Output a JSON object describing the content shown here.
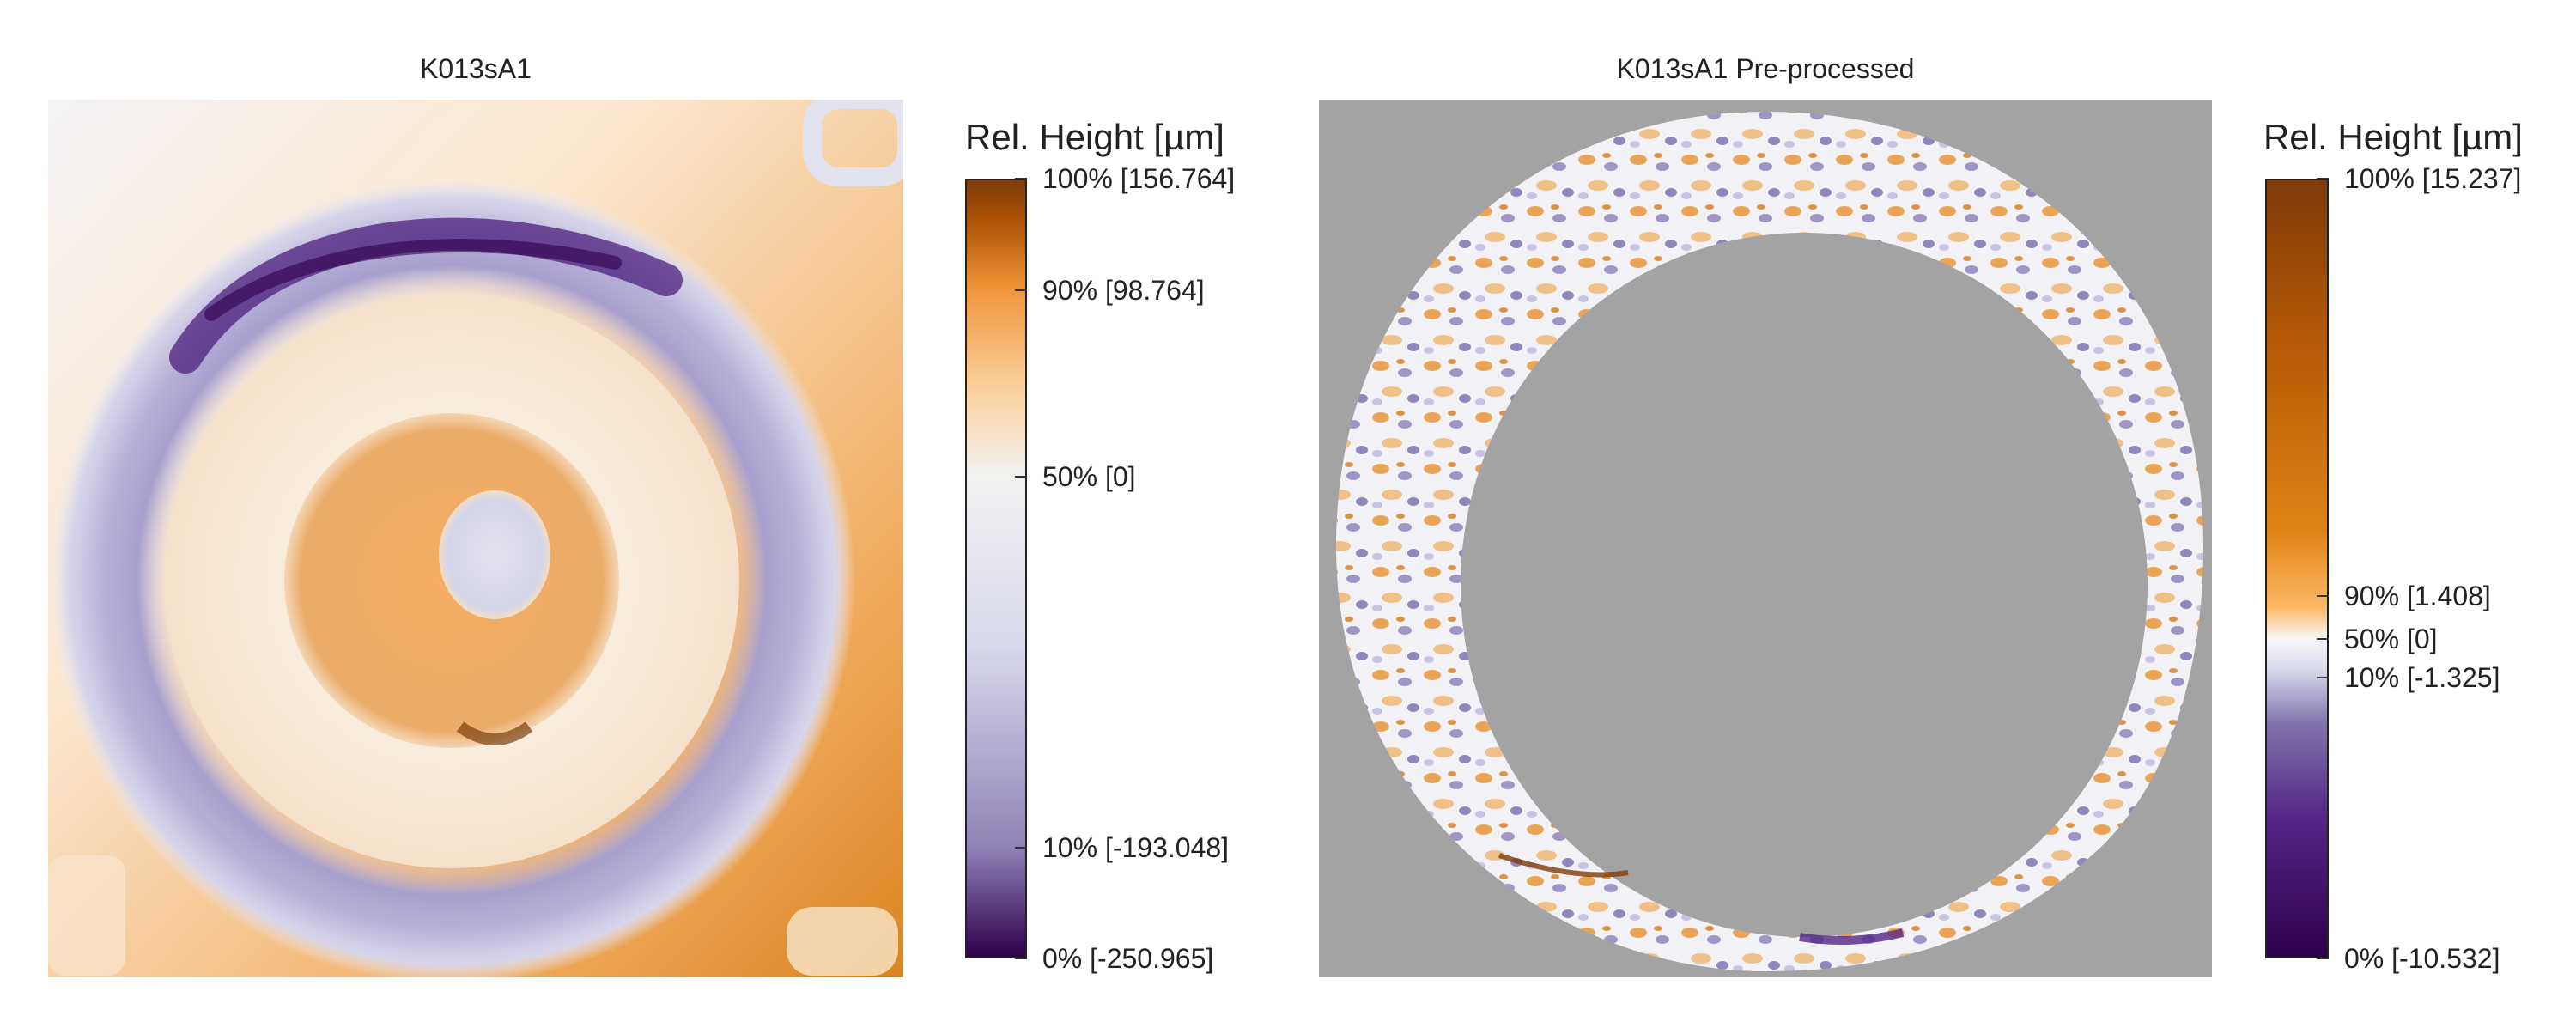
{
  "panels": [
    {
      "title": "K013sA1",
      "colorbar": {
        "title": "Rel. Height [µm]",
        "ticks": [
          {
            "label": "100% [156.764]",
            "fraction": 1.0
          },
          {
            "label": "90% [98.764]",
            "fraction": 0.857
          },
          {
            "label": "50% [0]",
            "fraction": 0.618
          },
          {
            "label": "10% [-193.048]",
            "fraction": 0.142
          },
          {
            "label": "0% [-250.965]",
            "fraction": 0.0
          }
        ],
        "colors": [
          "#2d004b",
          "#8f82b6",
          "#d8d9eb",
          "#f2f2f2",
          "#fbd5a6",
          "#f0963a",
          "#b35806",
          "#7f3b08"
        ]
      }
    },
    {
      "title": "K013sA1 Pre-processed",
      "colorbar": {
        "title": "Rel. Height [µm]",
        "ticks": [
          {
            "label": "100% [15.237]",
            "fraction": 1.0
          },
          {
            "label": "90% [1.408]",
            "fraction": 0.465
          },
          {
            "label": "50% [0]",
            "fraction": 0.41
          },
          {
            "label": "10% [-1.325]",
            "fraction": 0.36
          },
          {
            "label": "0% [-10.532]",
            "fraction": 0.0
          }
        ],
        "colors": [
          "#2d004b",
          "#542788",
          "#8073ac",
          "#d8daeb",
          "#f7f7f7",
          "#fdb863",
          "#e08214",
          "#b35806",
          "#7f3b08"
        ]
      }
    }
  ],
  "colors": {
    "background": "#ffffff",
    "mask_gray": "#a3a3a3",
    "orange": "#e8963a",
    "purple": "#8b7fba",
    "white_ring": "#eeeef5"
  }
}
